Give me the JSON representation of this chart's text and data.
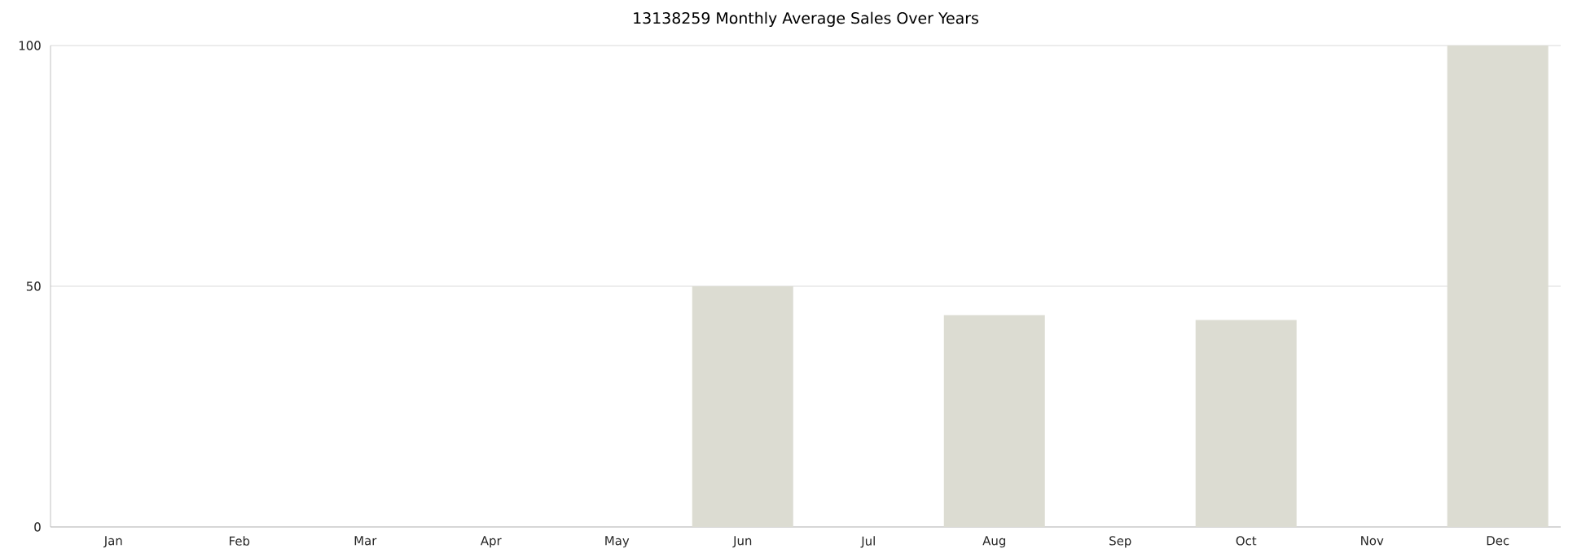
{
  "chart_data": {
    "type": "bar",
    "title": "13138259 Monthly Average Sales Over Years",
    "categories": [
      "Jan",
      "Feb",
      "Mar",
      "Apr",
      "May",
      "Jun",
      "Jul",
      "Aug",
      "Sep",
      "Oct",
      "Nov",
      "Dec"
    ],
    "values": [
      0,
      0,
      0,
      0,
      0,
      50,
      0,
      44,
      0,
      43,
      0,
      100
    ],
    "color": "#dcdcd2",
    "ylim": [
      0,
      100
    ],
    "yticks": [
      0,
      50,
      100
    ],
    "grid": "y"
  }
}
